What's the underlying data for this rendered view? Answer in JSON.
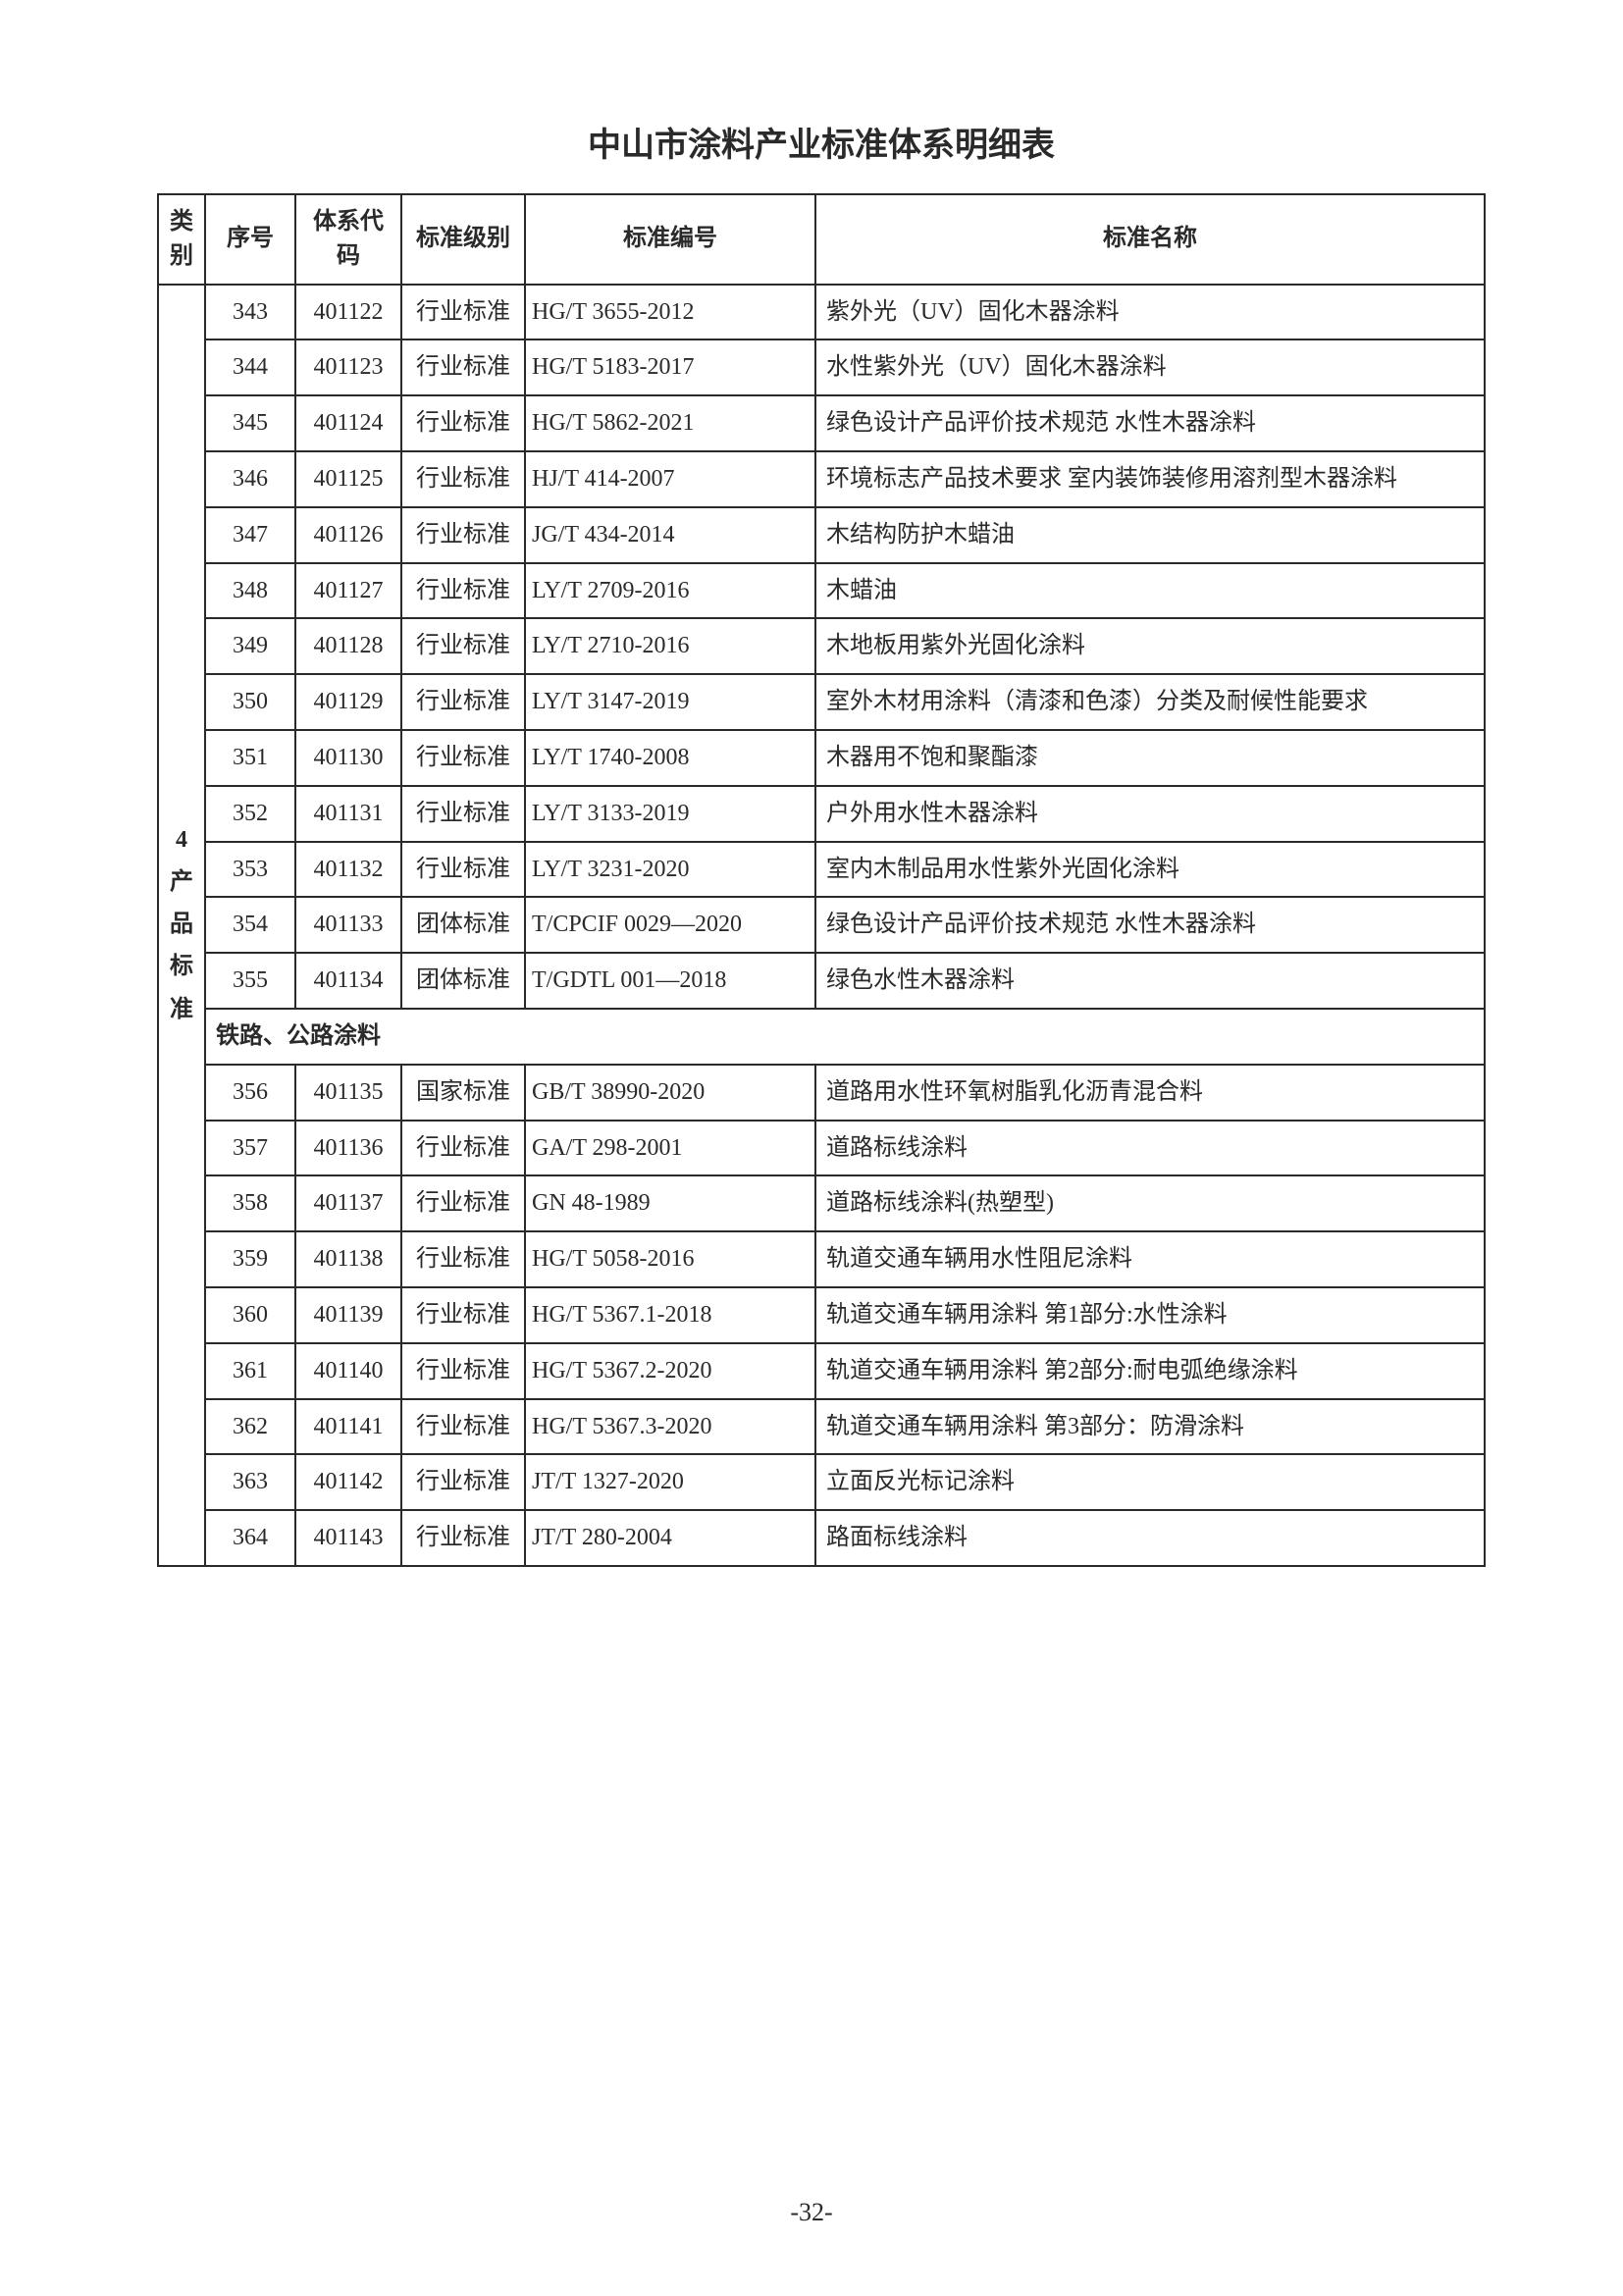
{
  "title": "中山市涂料产业标准体系明细表",
  "pageNumber": "-32-",
  "headers": {
    "category": "类别",
    "seq": "序号",
    "code": "体系代码",
    "level": "标准级别",
    "number": "标准编号",
    "name": "标准名称"
  },
  "categoryLabel": "4产品标准",
  "sectionHeader": "铁路、公路涂料",
  "colors": {
    "text": "#2a2a2a",
    "border": "#2a2a2a",
    "background": "#ffffff"
  },
  "rowsA": [
    {
      "seq": "343",
      "code": "401122",
      "level": "行业标准",
      "num": "HG/T 3655-2012",
      "name": "紫外光（UV）固化木器涂料"
    },
    {
      "seq": "344",
      "code": "401123",
      "level": "行业标准",
      "num": "HG/T 5183-2017",
      "name": "水性紫外光（UV）固化木器涂料"
    },
    {
      "seq": "345",
      "code": "401124",
      "level": "行业标准",
      "num": "HG/T 5862-2021",
      "name": "绿色设计产品评价技术规范  水性木器涂料"
    },
    {
      "seq": "346",
      "code": "401125",
      "level": "行业标准",
      "num": "HJ/T 414-2007",
      "name": "环境标志产品技术要求  室内装饰装修用溶剂型木器涂料"
    },
    {
      "seq": "347",
      "code": "401126",
      "level": "行业标准",
      "num": "JG/T 434-2014",
      "name": "木结构防护木蜡油"
    },
    {
      "seq": "348",
      "code": "401127",
      "level": "行业标准",
      "num": "LY/T 2709-2016",
      "name": "木蜡油"
    },
    {
      "seq": "349",
      "code": "401128",
      "level": "行业标准",
      "num": "LY/T 2710-2016",
      "name": "木地板用紫外光固化涂料"
    },
    {
      "seq": "350",
      "code": "401129",
      "level": "行业标准",
      "num": "LY/T 3147-2019",
      "name": "室外木材用涂料（清漆和色漆）分类及耐候性能要求"
    },
    {
      "seq": "351",
      "code": "401130",
      "level": "行业标准",
      "num": "LY/T 1740-2008",
      "name": "木器用不饱和聚酯漆"
    },
    {
      "seq": "352",
      "code": "401131",
      "level": "行业标准",
      "num": "LY/T 3133-2019",
      "name": "户外用水性木器涂料"
    },
    {
      "seq": "353",
      "code": "401132",
      "level": "行业标准",
      "num": "LY/T 3231-2020",
      "name": "室内木制品用水性紫外光固化涂料"
    },
    {
      "seq": "354",
      "code": "401133",
      "level": "团体标准",
      "num": "T/CPCIF 0029—2020",
      "name": "绿色设计产品评价技术规范  水性木器涂料"
    },
    {
      "seq": "355",
      "code": "401134",
      "level": "团体标准",
      "num": "T/GDTL 001—2018",
      "name": "绿色水性木器涂料"
    }
  ],
  "rowsB": [
    {
      "seq": "356",
      "code": "401135",
      "level": "国家标准",
      "num": "GB/T 38990-2020",
      "name": "道路用水性环氧树脂乳化沥青混合料"
    },
    {
      "seq": "357",
      "code": "401136",
      "level": "行业标准",
      "num": "GA/T 298-2001",
      "name": "道路标线涂料"
    },
    {
      "seq": "358",
      "code": "401137",
      "level": "行业标准",
      "num": "GN 48-1989",
      "name": "道路标线涂料(热塑型)"
    },
    {
      "seq": "359",
      "code": "401138",
      "level": "行业标准",
      "num": "HG/T 5058-2016",
      "name": "轨道交通车辆用水性阻尼涂料"
    },
    {
      "seq": "360",
      "code": "401139",
      "level": "行业标准",
      "num": "HG/T 5367.1-2018",
      "name": "轨道交通车辆用涂料  第1部分:水性涂料"
    },
    {
      "seq": "361",
      "code": "401140",
      "level": "行业标准",
      "num": "HG/T 5367.2-2020",
      "name": "轨道交通车辆用涂料  第2部分:耐电弧绝缘涂料"
    },
    {
      "seq": "362",
      "code": "401141",
      "level": "行业标准",
      "num": "HG/T 5367.3-2020",
      "name": "轨道交通车辆用涂料   第3部分：防滑涂料"
    },
    {
      "seq": "363",
      "code": "401142",
      "level": "行业标准",
      "num": "JT/T 1327-2020",
      "name": "立面反光标记涂料"
    },
    {
      "seq": "364",
      "code": "401143",
      "level": "行业标准",
      "num": "JT/T 280-2004",
      "name": "路面标线涂料"
    }
  ]
}
